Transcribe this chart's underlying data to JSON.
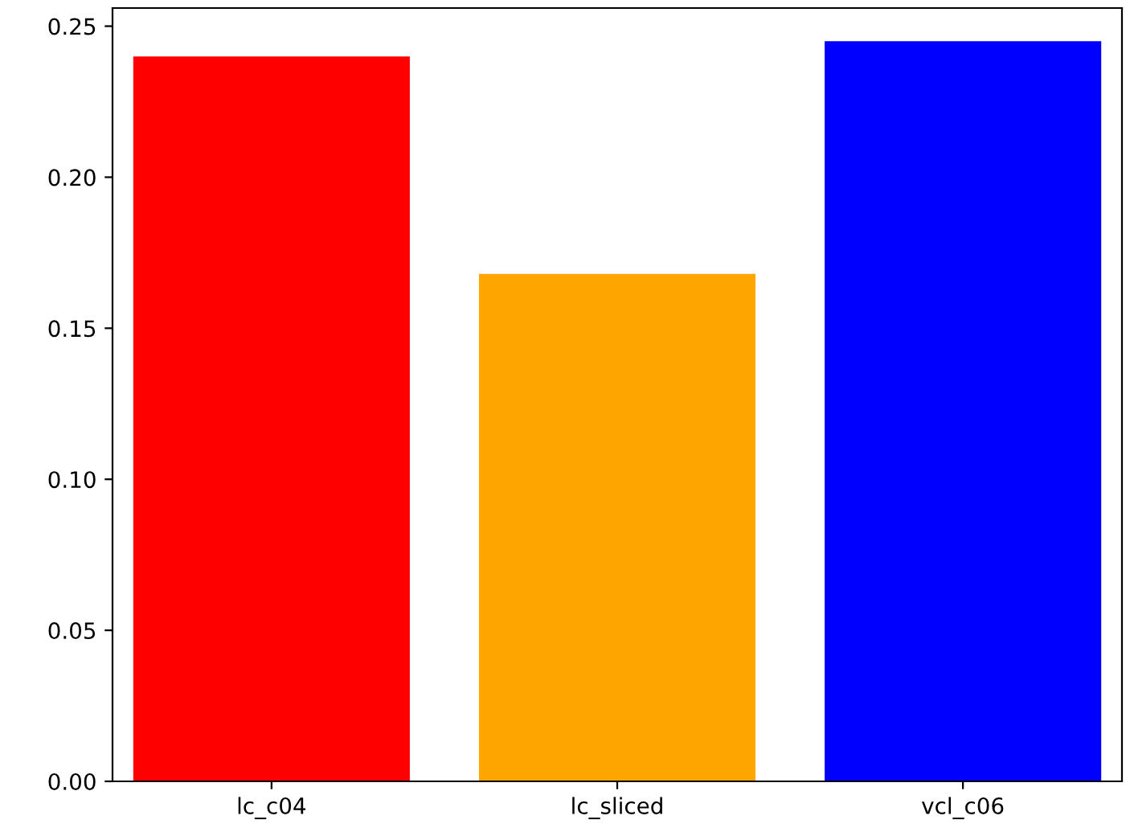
{
  "chart_data": {
    "type": "bar",
    "categories": [
      "lc_c04",
      "lc_sliced",
      "vcl_c06"
    ],
    "values": [
      0.24,
      0.168,
      0.245
    ],
    "colors": [
      "#ff0000",
      "#ffa500",
      "#0000ff"
    ],
    "ylim": [
      0,
      0.256
    ],
    "yticks": [
      {
        "value": 0,
        "label": "0.00"
      },
      {
        "value": 0.05,
        "label": "0.05"
      },
      {
        "value": 0.1,
        "label": "0.10"
      },
      {
        "value": 0.15,
        "label": "0.15"
      },
      {
        "value": 0.2,
        "label": "0.20"
      },
      {
        "value": 0.25,
        "label": "0.25"
      }
    ],
    "grid": false
  }
}
